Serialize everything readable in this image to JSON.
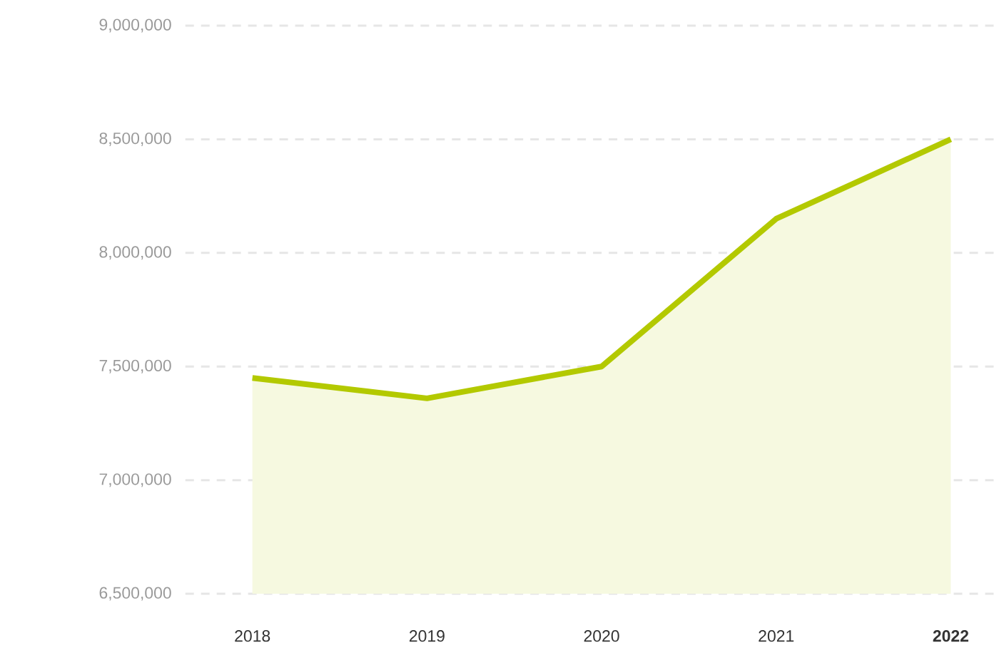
{
  "chart_data": {
    "type": "area",
    "categories": [
      "2018",
      "2019",
      "2020",
      "2021",
      "**2022**"
    ],
    "series": [
      {
        "color": "#b3c900",
        "values": [
          7450000,
          7360000,
          7500000,
          8150000,
          8500000
        ]
      }
    ],
    "ylim": [
      6500000,
      9000000
    ],
    "yticks": [
      {
        "value": 6500000,
        "label": "6,500,000"
      },
      {
        "value": 7000000,
        "label": "7,000,000"
      },
      {
        "value": 7500000,
        "label": "7,500,000"
      },
      {
        "value": 8000000,
        "label": "8,000,000"
      },
      {
        "value": 8500000,
        "label": "8,500,000"
      },
      {
        "value": 9000000,
        "label": "9,000,000"
      }
    ],
    "grid": "y",
    "marker": "none",
    "line_style": "solid"
  }
}
